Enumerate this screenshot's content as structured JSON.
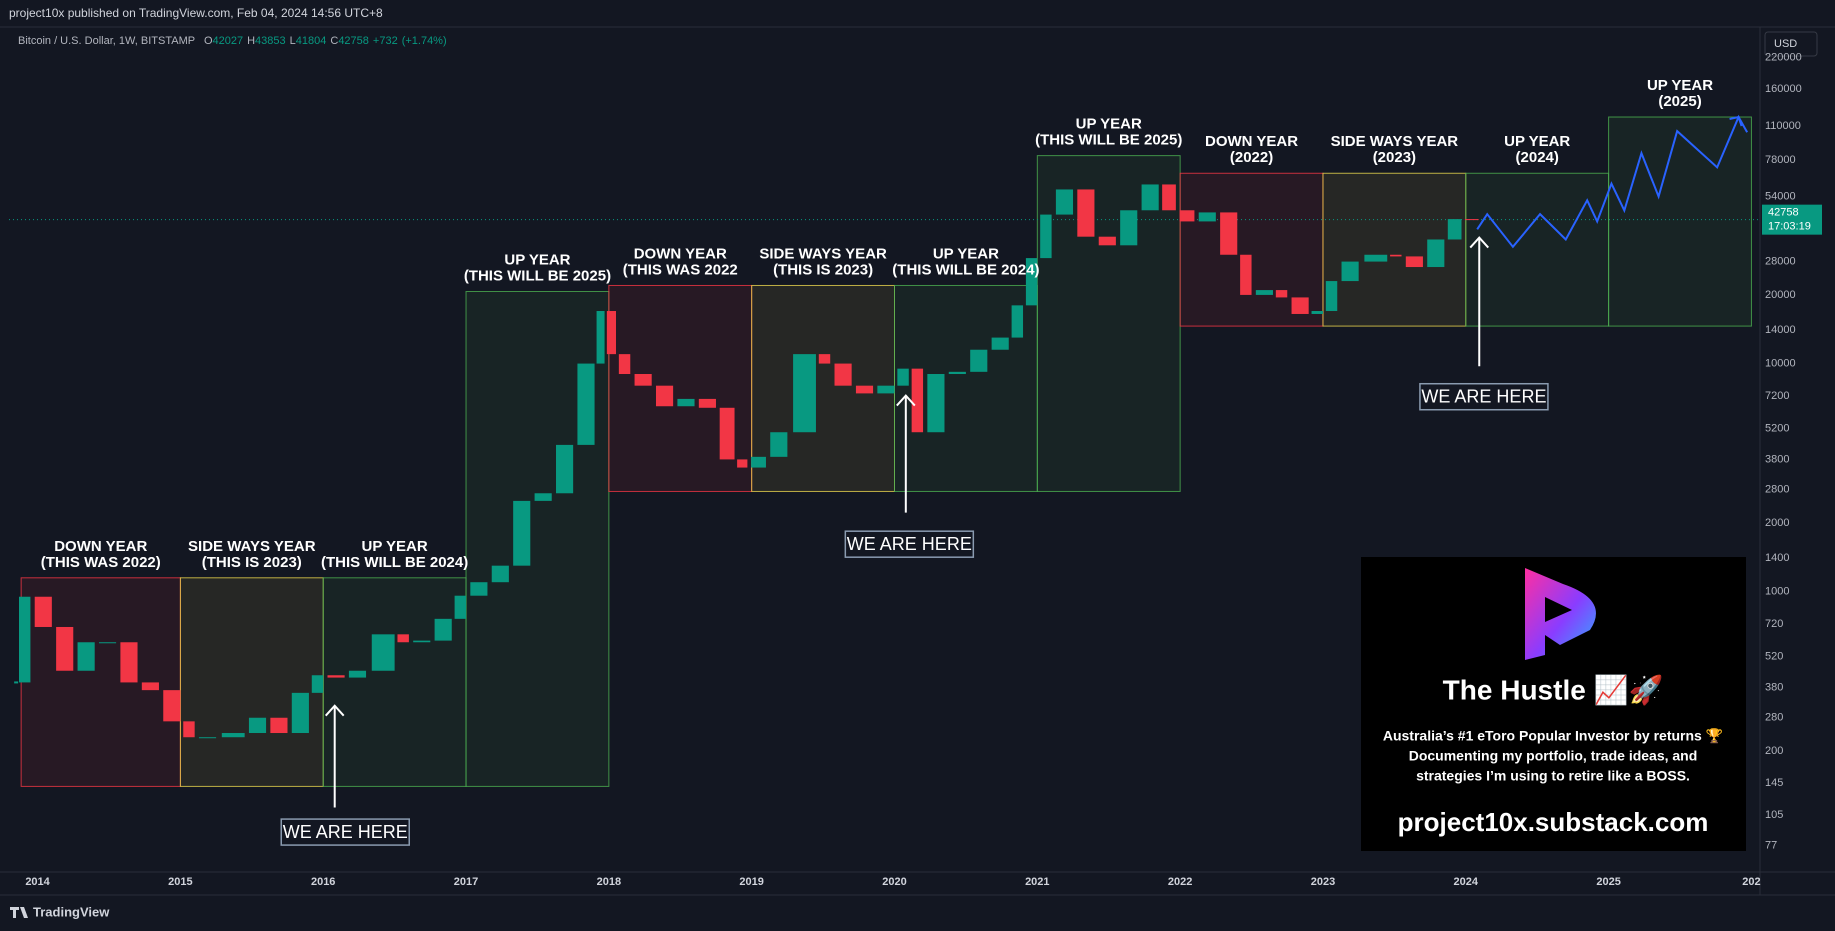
{
  "header": "project10x published on TradingView.com, Feb 04, 2024 14:56 UTC+8",
  "footer": "TradingView",
  "chart_data": {
    "type": "candlestick",
    "symbol": "Bitcoin / U.S. Dollar, 1W, BITSTAMP",
    "ohlc": [
      {
        "label": "O",
        "value": 42027
      },
      {
        "label": "H",
        "value": 43853
      },
      {
        "label": "L",
        "value": 41804
      },
      {
        "label": "C",
        "value": 42758
      }
    ],
    "change": "+732",
    "change_pct": "(+1.74%)",
    "currency": "USD",
    "last_price": 42758,
    "countdown": "17:03:19",
    "up_color": "#089981",
    "down_color": "#f23645",
    "xlim": [
      2013.8,
      2026.06
    ],
    "xticks": [
      2014,
      2015,
      2016,
      2017,
      2018,
      2019,
      2020,
      2021,
      2022,
      2023,
      2024,
      2025,
      {
        "value": 2026,
        "label": "202"
      }
    ],
    "ylim": [
      59,
      296000
    ],
    "ylog": true,
    "yticks": [
      77,
      105,
      145,
      200,
      280,
      380,
      520,
      720,
      1000,
      1400,
      2000,
      2800,
      3800,
      5200,
      7200,
      10000,
      14000,
      20000,
      28000,
      54000,
      78000,
      110000,
      160000,
      220000
    ],
    "x": [
      2013.85,
      2013.95,
      2014.1,
      2014.25,
      2014.4,
      2014.55,
      2014.7,
      2014.85,
      2015.0,
      2015.1,
      2015.25,
      2015.45,
      2015.6,
      2015.75,
      2015.9,
      2016.0,
      2016.15,
      2016.3,
      2016.5,
      2016.6,
      2016.75,
      2016.9,
      2017.0,
      2017.15,
      2017.3,
      2017.45,
      2017.6,
      2017.75,
      2017.9,
      2017.97,
      2018.05,
      2018.15,
      2018.3,
      2018.45,
      2018.6,
      2018.75,
      2018.88,
      2018.97,
      2019.1,
      2019.25,
      2019.45,
      2019.55,
      2019.7,
      2019.85,
      2020.0,
      2020.1,
      2020.2,
      2020.35,
      2020.5,
      2020.65,
      2020.8,
      2020.9,
      2021.0,
      2021.1,
      2021.25,
      2021.4,
      2021.55,
      2021.7,
      2021.85,
      2021.97,
      2022.1,
      2022.25,
      2022.4,
      2022.5,
      2022.65,
      2022.75,
      2022.9,
      2023.0,
      2023.1,
      2023.25,
      2023.45,
      2023.55,
      2023.7,
      2023.85,
      2023.97,
      2024.09
    ],
    "values": [
      400,
      950,
      700,
      450,
      600,
      600,
      400,
      370,
      270,
      230,
      230,
      240,
      280,
      240,
      360,
      430,
      420,
      450,
      650,
      600,
      610,
      760,
      960,
      1100,
      1300,
      2500,
      2700,
      4400,
      10000,
      17000,
      11000,
      9000,
      8000,
      6500,
      7000,
      6400,
      3800,
      3500,
      3900,
      5000,
      11000,
      10000,
      8000,
      7400,
      8000,
      9500,
      5000,
      9000,
      9200,
      11500,
      13000,
      18000,
      29000,
      45000,
      58000,
      36000,
      33000,
      47000,
      61000,
      47000,
      42000,
      46000,
      30000,
      20000,
      21000,
      19500,
      16500,
      17000,
      23000,
      28000,
      30000,
      29500,
      26500,
      35000,
      43000,
      42758
    ],
    "projection": {
      "color": "#2962ff",
      "x": [
        2024.08,
        2024.15,
        2024.33,
        2024.52,
        2024.7,
        2024.85,
        2024.92,
        2025.02,
        2025.11,
        2025.23,
        2025.35,
        2025.48,
        2025.76,
        2025.91,
        2025.97
      ],
      "values": [
        38800,
        45200,
        32500,
        45200,
        35000,
        52000,
        42000,
        61500,
        46900,
        83600,
        54000,
        104500,
        72500,
        120500,
        103300
      ]
    },
    "zones": [
      {
        "title": "DOWN YEAR",
        "subtitle": "(THIS WAS 2022)",
        "x": [
          2013.885,
          2015
        ],
        "y": [
          140,
          1150
        ],
        "color": "#f23645"
      },
      {
        "title": "SIDE WAYS YEAR",
        "subtitle": "(THIS IS 2023)",
        "x": [
          2015,
          2016
        ],
        "y": [
          140,
          1150
        ],
        "color": "#e8d44d"
      },
      {
        "title": "UP YEAR",
        "subtitle": "(THIS WILL BE 2024)",
        "x": [
          2016,
          2017
        ],
        "y": [
          140,
          1150
        ],
        "color": "#4caf50"
      },
      {
        "title": "UP YEAR",
        "subtitle": "(THIS WILL BE 2025)",
        "x": [
          2017,
          2018
        ],
        "y": [
          140,
          20700
        ],
        "color": "#4caf50"
      },
      {
        "title": "DOWN YEAR",
        "subtitle": "(THIS WAS 2022",
        "x": [
          2018,
          2019
        ],
        "y": [
          2750,
          22000
        ],
        "color": "#f23645"
      },
      {
        "title": "SIDE WAYS YEAR",
        "subtitle": "(THIS IS 2023)",
        "x": [
          2019,
          2020
        ],
        "y": [
          2750,
          22000
        ],
        "color": "#e8d44d"
      },
      {
        "title": "UP YEAR",
        "subtitle": "(THIS WILL BE 2024)",
        "x": [
          2020,
          2021
        ],
        "y": [
          2750,
          22000
        ],
        "color": "#4caf50"
      },
      {
        "title": "UP YEAR",
        "subtitle": "(THIS WILL BE 2025)",
        "x": [
          2021,
          2022
        ],
        "y": [
          2750,
          81600
        ],
        "color": "#4caf50"
      },
      {
        "title": "DOWN YEAR",
        "subtitle": "(2022)",
        "x": [
          2022,
          2023
        ],
        "y": [
          14600,
          68300
        ],
        "color": "#f23645"
      },
      {
        "title": "SIDE WAYS YEAR",
        "subtitle": "(2023)",
        "x": [
          2023,
          2024
        ],
        "y": [
          14600,
          68300
        ],
        "color": "#e8d44d"
      },
      {
        "title": "UP YEAR",
        "subtitle": "(2024)",
        "x": [
          2024,
          2025
        ],
        "y": [
          14600,
          68300
        ],
        "color": "#4caf50"
      },
      {
        "title": "UP YEAR",
        "subtitle": "(2025)",
        "x": [
          2025,
          2026
        ],
        "y": [
          14600,
          120500
        ],
        "color": "#4caf50"
      }
    ],
    "callouts": [
      "WE ARE HERE",
      "WE ARE HERE",
      "WE ARE HERE"
    ]
  },
  "promo": {
    "title": "The Hustle 📈🚀",
    "lines": [
      "Australia’s #1 eToro Popular Investor by returns 🏆",
      "Documenting my portfolio, trade ideas, and",
      "strategies I’m using to retire like a BOSS."
    ],
    "url": "project10x.substack.com"
  }
}
